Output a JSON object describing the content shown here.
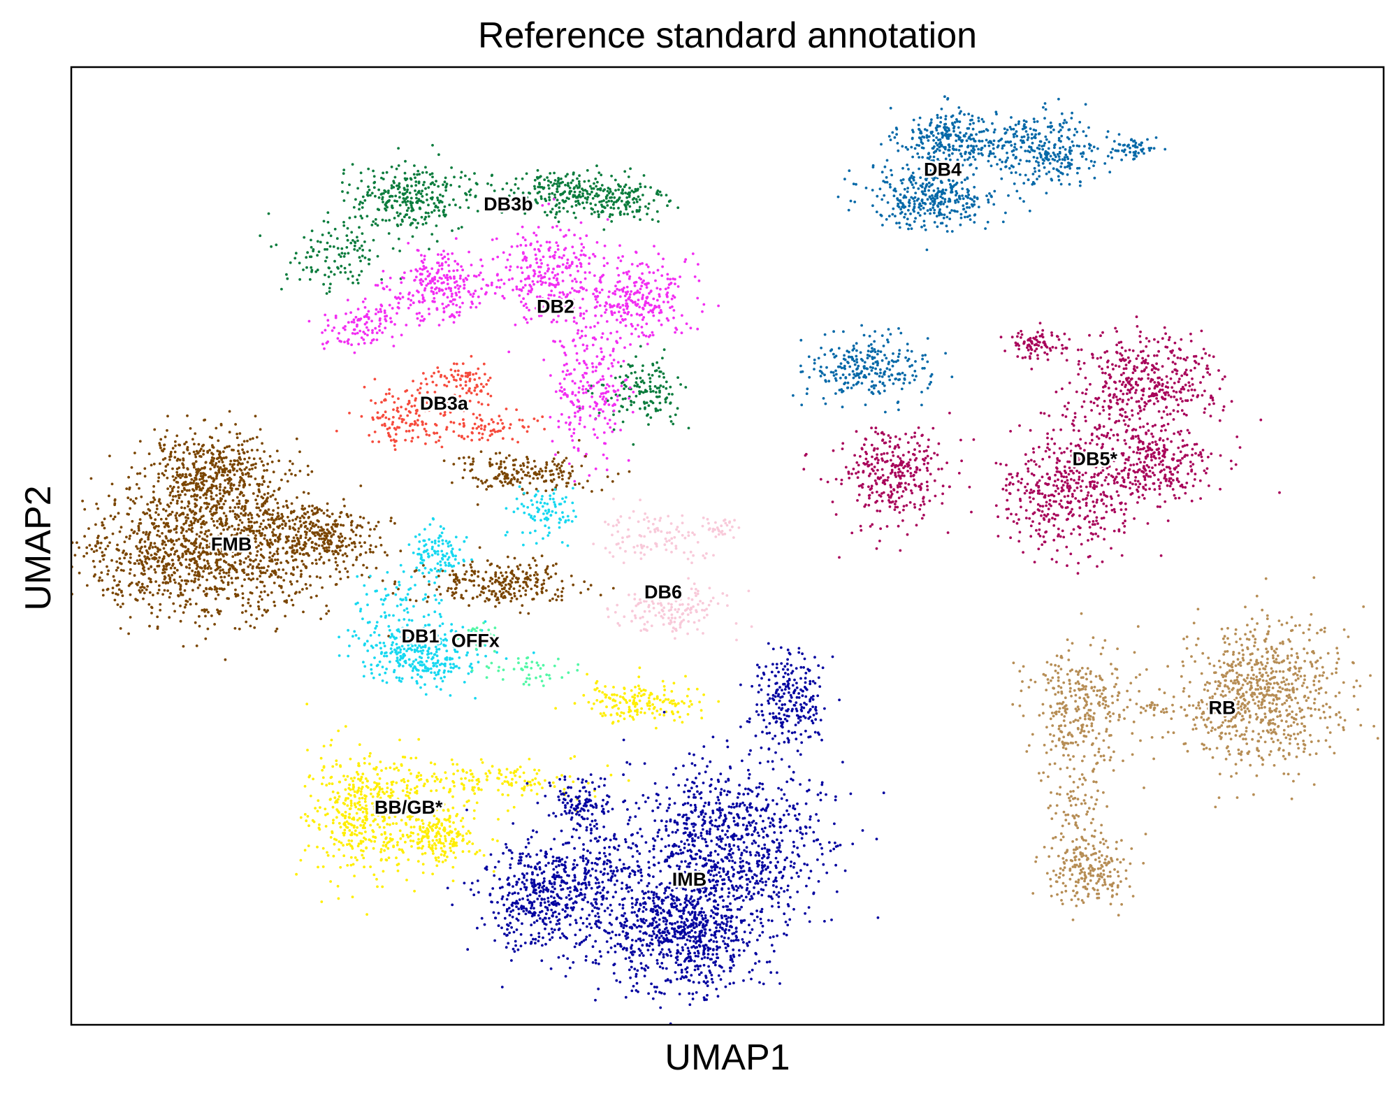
{
  "chart_data": {
    "type": "scatter",
    "title": "Reference standard annotation",
    "xlabel": "UMAP1",
    "ylabel": "UMAP2",
    "xlim": [
      0,
      100
    ],
    "ylim": [
      0,
      100
    ],
    "grid": false,
    "ticks": false,
    "legend": "on data",
    "clusters": [
      {
        "name": "DB4",
        "color": "#0769a8",
        "label_xy": [
          66.4,
          89.3
        ],
        "blobs": [
          {
            "cx": 66.8,
            "cy": 92.6,
            "sx": 1.8,
            "sy": 1.6,
            "n": 260
          },
          {
            "cx": 65.7,
            "cy": 86.5,
            "sx": 2.5,
            "sy": 1.7,
            "n": 360
          },
          {
            "cx": 74.5,
            "cy": 91.3,
            "sx": 2.0,
            "sy": 1.9,
            "n": 260
          },
          {
            "cx": 81.0,
            "cy": 91.5,
            "sx": 0.9,
            "sy": 0.6,
            "n": 55
          },
          {
            "cx": 70.5,
            "cy": 92.0,
            "sx": 1.8,
            "sy": 0.9,
            "n": 50
          },
          {
            "cx": 60.7,
            "cy": 68.6,
            "sx": 2.3,
            "sy": 1.7,
            "n": 260
          }
        ]
      },
      {
        "name": "DB3b",
        "color": "#0b7c3d",
        "label_xy": [
          33.3,
          85.7
        ],
        "blobs": [
          {
            "cx": 25.8,
            "cy": 86.2,
            "sx": 2.6,
            "sy": 1.7,
            "n": 300
          },
          {
            "cx": 36.7,
            "cy": 87.0,
            "sx": 2.2,
            "sy": 1.2,
            "n": 160
          },
          {
            "cx": 41.3,
            "cy": 86.1,
            "sx": 2.1,
            "sy": 1.4,
            "n": 180
          },
          {
            "cx": 19.8,
            "cy": 80.0,
            "sx": 2.0,
            "sy": 1.8,
            "n": 110
          },
          {
            "cx": 43.6,
            "cy": 66.1,
            "sx": 1.6,
            "sy": 1.7,
            "n": 140
          }
        ]
      },
      {
        "name": "DB2",
        "color": "#f22ef2",
        "label_xy": [
          36.9,
          75.0
        ],
        "blobs": [
          {
            "cx": 28.3,
            "cy": 77.0,
            "sx": 2.0,
            "sy": 1.8,
            "n": 250
          },
          {
            "cx": 43.0,
            "cy": 76.0,
            "sx": 2.0,
            "sy": 2.2,
            "n": 280
          },
          {
            "cx": 36.5,
            "cy": 78.5,
            "sx": 1.9,
            "sy": 2.8,
            "n": 270
          },
          {
            "cx": 22.0,
            "cy": 73.0,
            "sx": 1.4,
            "sy": 1.3,
            "n": 110
          },
          {
            "cx": 39.5,
            "cy": 66.5,
            "sx": 1.4,
            "sy": 3.5,
            "n": 220
          }
        ]
      },
      {
        "name": "DB3a",
        "color": "#f64b3d",
        "label_xy": [
          28.4,
          64.9
        ],
        "blobs": [
          {
            "cx": 25.5,
            "cy": 63.5,
            "sx": 1.8,
            "sy": 1.6,
            "n": 140
          },
          {
            "cx": 30.2,
            "cy": 67.2,
            "sx": 1.2,
            "sy": 1.0,
            "n": 80
          },
          {
            "cx": 31.5,
            "cy": 62.5,
            "sx": 2.0,
            "sy": 0.8,
            "n": 80
          }
        ]
      },
      {
        "name": "FMB",
        "color": "#7a4500",
        "label_xy": [
          12.2,
          50.2
        ],
        "blobs": [
          {
            "cx": 10.9,
            "cy": 57.5,
            "sx": 2.8,
            "sy": 2.2,
            "n": 550
          },
          {
            "cx": 10.0,
            "cy": 49.0,
            "sx": 4.5,
            "sy": 3.2,
            "n": 1150
          },
          {
            "cx": 19.5,
            "cy": 50.7,
            "sx": 2.0,
            "sy": 1.8,
            "n": 260
          },
          {
            "cx": 15.5,
            "cy": 52.5,
            "sx": 1.8,
            "sy": 1.0,
            "n": 70
          },
          {
            "cx": 34.5,
            "cy": 57.5,
            "sx": 2.8,
            "sy": 1.0,
            "n": 190
          },
          {
            "cx": 32.5,
            "cy": 46.0,
            "sx": 3.0,
            "sy": 1.2,
            "n": 260
          }
        ]
      },
      {
        "name": "DB1",
        "color": "#17d8f0",
        "label_xy": [
          26.6,
          40.6
        ],
        "blobs": [
          {
            "cx": 26.5,
            "cy": 38.8,
            "sx": 2.4,
            "sy": 1.7,
            "n": 330
          },
          {
            "cx": 27.8,
            "cy": 49.2,
            "sx": 1.1,
            "sy": 1.2,
            "n": 110
          },
          {
            "cx": 36.2,
            "cy": 53.3,
            "sx": 1.3,
            "sy": 1.3,
            "n": 90
          },
          {
            "cx": 24.5,
            "cy": 44.0,
            "sx": 1.8,
            "sy": 1.8,
            "n": 60
          }
        ]
      },
      {
        "name": "OFFx",
        "color": "#52f7a6",
        "label_xy": [
          30.8,
          40.1
        ],
        "blobs": [
          {
            "cx": 31.3,
            "cy": 40.5,
            "sx": 0.8,
            "sy": 0.6,
            "n": 30
          },
          {
            "cx": 34.5,
            "cy": 37.0,
            "sx": 2.0,
            "sy": 0.9,
            "n": 45
          }
        ]
      },
      {
        "name": "DB6",
        "color": "#f8c9d9",
        "label_xy": [
          45.1,
          45.2
        ],
        "blobs": [
          {
            "cx": 45.6,
            "cy": 43.5,
            "sx": 2.3,
            "sy": 1.2,
            "n": 140
          },
          {
            "cx": 44.0,
            "cy": 51.0,
            "sx": 2.2,
            "sy": 1.3,
            "n": 100
          },
          {
            "cx": 49.5,
            "cy": 52.0,
            "sx": 0.7,
            "sy": 0.6,
            "n": 30
          }
        ]
      },
      {
        "name": "DB5*",
        "color": "#a8045a",
        "label_xy": [
          78.0,
          59.1
        ],
        "blobs": [
          {
            "cx": 82.0,
            "cy": 67.2,
            "sx": 2.6,
            "sy": 2.3,
            "n": 400
          },
          {
            "cx": 73.6,
            "cy": 71.0,
            "sx": 1.0,
            "sy": 0.9,
            "n": 90
          },
          {
            "cx": 62.5,
            "cy": 57.2,
            "sx": 2.2,
            "sy": 2.6,
            "n": 320
          },
          {
            "cx": 75.5,
            "cy": 55.5,
            "sx": 2.6,
            "sy": 3.0,
            "n": 420
          },
          {
            "cx": 82.3,
            "cy": 58.5,
            "sx": 2.6,
            "sy": 1.9,
            "n": 300
          },
          {
            "cx": 78.5,
            "cy": 62.5,
            "sx": 2.0,
            "sy": 2.2,
            "n": 60
          }
        ]
      },
      {
        "name": "RB",
        "color": "#b68d55",
        "label_xy": [
          87.7,
          33.1
        ],
        "blobs": [
          {
            "cx": 90.5,
            "cy": 34.5,
            "sx": 3.0,
            "sy": 4.0,
            "n": 750
          },
          {
            "cx": 76.7,
            "cy": 33.0,
            "sx": 2.0,
            "sy": 3.5,
            "n": 320
          },
          {
            "cx": 77.5,
            "cy": 16.0,
            "sx": 1.7,
            "sy": 1.8,
            "n": 220
          },
          {
            "cx": 76.5,
            "cy": 22.5,
            "sx": 0.9,
            "sy": 2.0,
            "n": 60
          },
          {
            "cx": 83.0,
            "cy": 33.0,
            "sx": 1.2,
            "sy": 0.4,
            "n": 30
          }
        ]
      },
      {
        "name": "BB/GB*",
        "color": "#ffee00",
        "label_xy": [
          25.7,
          22.7
        ],
        "blobs": [
          {
            "cx": 22.5,
            "cy": 22.0,
            "sx": 2.2,
            "sy": 3.3,
            "n": 440
          },
          {
            "cx": 28.0,
            "cy": 19.5,
            "sx": 1.6,
            "sy": 1.6,
            "n": 200
          },
          {
            "cx": 30.5,
            "cy": 25.5,
            "sx": 4.5,
            "sy": 1.0,
            "n": 180
          },
          {
            "cx": 43.5,
            "cy": 33.6,
            "sx": 2.3,
            "sy": 1.1,
            "n": 170
          }
        ]
      },
      {
        "name": "IMB",
        "color": "#0404a0",
        "label_xy": [
          47.1,
          15.2
        ],
        "blobs": [
          {
            "cx": 36.5,
            "cy": 13.5,
            "sx": 2.6,
            "sy": 3.0,
            "n": 550
          },
          {
            "cx": 50.0,
            "cy": 19.0,
            "sx": 3.8,
            "sy": 4.0,
            "n": 900
          },
          {
            "cx": 46.5,
            "cy": 9.5,
            "sx": 3.0,
            "sy": 3.0,
            "n": 800
          },
          {
            "cx": 38.8,
            "cy": 22.8,
            "sx": 1.2,
            "sy": 1.5,
            "n": 130
          },
          {
            "cx": 54.5,
            "cy": 34.0,
            "sx": 1.4,
            "sy": 2.6,
            "n": 240
          },
          {
            "cx": 41.0,
            "cy": 17.0,
            "sx": 1.0,
            "sy": 2.0,
            "n": 80
          }
        ]
      }
    ]
  }
}
